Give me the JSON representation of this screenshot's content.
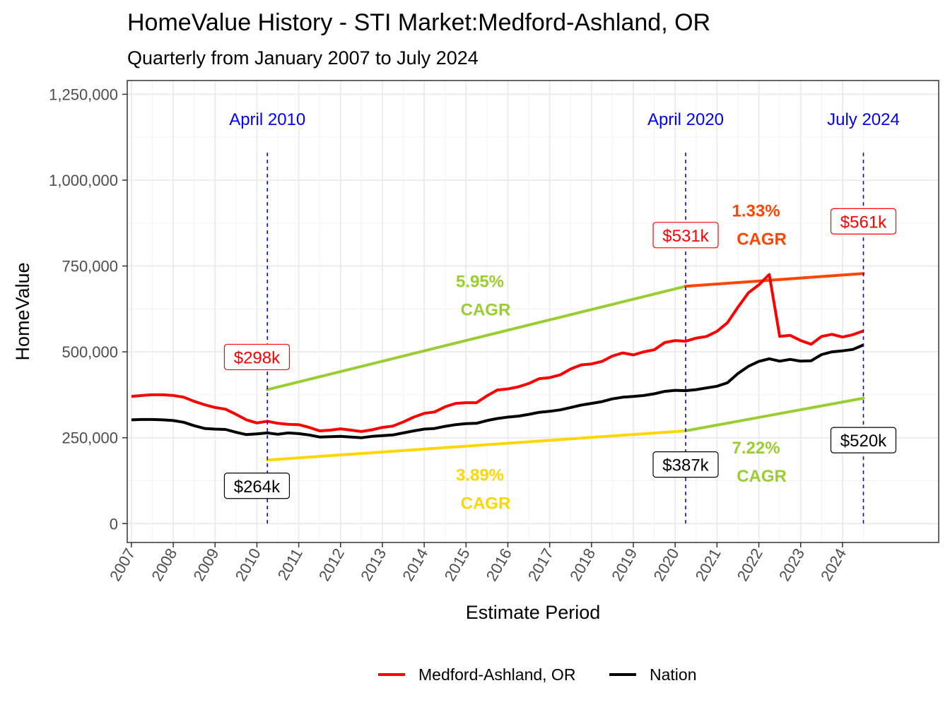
{
  "chart_data": {
    "type": "line",
    "title": "HomeValue History - STI Market:Medford-Ashland, OR",
    "subtitle": "Quarterly from January 2007 to July 2024",
    "xlabel": "Estimate Period",
    "ylabel": "HomeValue",
    "xlim": [
      2006.9,
      2026.3
    ],
    "ylim": [
      -55000,
      1290000
    ],
    "x_ticks": [
      "2007",
      "2008",
      "2009",
      "2010",
      "2011",
      "2012",
      "2013",
      "2014",
      "2015",
      "2016",
      "2017",
      "2018",
      "2019",
      "2020",
      "2021",
      "2022",
      "2023",
      "2024"
    ],
    "y_ticks": [
      {
        "value": 0,
        "label": "0"
      },
      {
        "value": 250000,
        "label": "250,000"
      },
      {
        "value": 500000,
        "label": "500,000"
      },
      {
        "value": 750000,
        "label": "750,000"
      },
      {
        "value": 1000000,
        "label": "1,000,000"
      },
      {
        "value": 1250000,
        "label": "1,250,000"
      }
    ],
    "grid": true,
    "legend_position": "bottom",
    "series": [
      {
        "name": "Medford-Ashland, OR",
        "color": "#ff0000",
        "points": [
          [
            2007.0,
            370000
          ],
          [
            2007.25,
            373000
          ],
          [
            2007.5,
            375000
          ],
          [
            2007.75,
            375000
          ],
          [
            2008.0,
            373000
          ],
          [
            2008.25,
            368000
          ],
          [
            2008.5,
            356000
          ],
          [
            2008.75,
            346000
          ],
          [
            2009.0,
            338000
          ],
          [
            2009.25,
            333000
          ],
          [
            2009.5,
            318000
          ],
          [
            2009.75,
            302000
          ],
          [
            2010.0,
            293000
          ],
          [
            2010.25,
            298000
          ],
          [
            2010.5,
            292000
          ],
          [
            2010.75,
            289000
          ],
          [
            2011.0,
            288000
          ],
          [
            2011.25,
            280000
          ],
          [
            2011.5,
            270000
          ],
          [
            2011.75,
            272000
          ],
          [
            2012.0,
            276000
          ],
          [
            2012.25,
            272000
          ],
          [
            2012.5,
            268000
          ],
          [
            2012.75,
            273000
          ],
          [
            2013.0,
            280000
          ],
          [
            2013.25,
            284000
          ],
          [
            2013.5,
            296000
          ],
          [
            2013.75,
            310000
          ],
          [
            2014.0,
            321000
          ],
          [
            2014.25,
            325000
          ],
          [
            2014.5,
            340000
          ],
          [
            2014.75,
            350000
          ],
          [
            2015.0,
            352000
          ],
          [
            2015.25,
            352000
          ],
          [
            2015.5,
            372000
          ],
          [
            2015.75,
            389000
          ],
          [
            2016.0,
            392000
          ],
          [
            2016.25,
            398000
          ],
          [
            2016.5,
            408000
          ],
          [
            2016.75,
            422000
          ],
          [
            2017.0,
            425000
          ],
          [
            2017.25,
            433000
          ],
          [
            2017.5,
            450000
          ],
          [
            2017.75,
            462000
          ],
          [
            2018.0,
            465000
          ],
          [
            2018.25,
            472000
          ],
          [
            2018.5,
            488000
          ],
          [
            2018.75,
            497000
          ],
          [
            2019.0,
            491000
          ],
          [
            2019.25,
            500000
          ],
          [
            2019.5,
            506000
          ],
          [
            2019.75,
            527000
          ],
          [
            2020.0,
            533000
          ],
          [
            2020.25,
            531000
          ],
          [
            2020.5,
            540000
          ],
          [
            2020.75,
            545000
          ],
          [
            2021.0,
            560000
          ],
          [
            2021.25,
            585000
          ],
          [
            2021.5,
            630000
          ],
          [
            2021.75,
            672000
          ],
          [
            2022.0,
            695000
          ],
          [
            2022.25,
            725000
          ],
          [
            2022.5,
            545000
          ],
          [
            2022.75,
            548000
          ],
          [
            2023.0,
            533000
          ],
          [
            2023.25,
            522000
          ],
          [
            2023.5,
            545000
          ],
          [
            2023.75,
            551000
          ],
          [
            2024.0,
            543000
          ],
          [
            2024.25,
            550000
          ],
          [
            2024.5,
            561000
          ]
        ]
      },
      {
        "name": "Nation",
        "color": "#000000",
        "points": [
          [
            2007.0,
            302000
          ],
          [
            2007.25,
            303000
          ],
          [
            2007.5,
            303000
          ],
          [
            2007.75,
            302000
          ],
          [
            2008.0,
            300000
          ],
          [
            2008.25,
            295000
          ],
          [
            2008.5,
            285000
          ],
          [
            2008.75,
            277000
          ],
          [
            2009.0,
            275000
          ],
          [
            2009.25,
            274000
          ],
          [
            2009.5,
            266000
          ],
          [
            2009.75,
            259000
          ],
          [
            2010.0,
            261000
          ],
          [
            2010.25,
            264000
          ],
          [
            2010.5,
            260000
          ],
          [
            2010.75,
            264000
          ],
          [
            2011.0,
            262000
          ],
          [
            2011.25,
            258000
          ],
          [
            2011.5,
            252000
          ],
          [
            2011.75,
            253000
          ],
          [
            2012.0,
            254000
          ],
          [
            2012.25,
            252000
          ],
          [
            2012.5,
            250000
          ],
          [
            2012.75,
            254000
          ],
          [
            2013.0,
            256000
          ],
          [
            2013.25,
            258000
          ],
          [
            2013.5,
            264000
          ],
          [
            2013.75,
            270000
          ],
          [
            2014.0,
            275000
          ],
          [
            2014.25,
            277000
          ],
          [
            2014.5,
            283000
          ],
          [
            2014.75,
            288000
          ],
          [
            2015.0,
            291000
          ],
          [
            2015.25,
            292000
          ],
          [
            2015.5,
            300000
          ],
          [
            2015.75,
            306000
          ],
          [
            2016.0,
            310000
          ],
          [
            2016.25,
            313000
          ],
          [
            2016.5,
            318000
          ],
          [
            2016.75,
            324000
          ],
          [
            2017.0,
            327000
          ],
          [
            2017.25,
            331000
          ],
          [
            2017.5,
            338000
          ],
          [
            2017.75,
            345000
          ],
          [
            2018.0,
            350000
          ],
          [
            2018.25,
            355000
          ],
          [
            2018.5,
            363000
          ],
          [
            2018.75,
            368000
          ],
          [
            2019.0,
            370000
          ],
          [
            2019.25,
            373000
          ],
          [
            2019.5,
            378000
          ],
          [
            2019.75,
            385000
          ],
          [
            2020.0,
            388000
          ],
          [
            2020.25,
            387000
          ],
          [
            2020.5,
            390000
          ],
          [
            2020.75,
            395000
          ],
          [
            2021.0,
            400000
          ],
          [
            2021.25,
            410000
          ],
          [
            2021.5,
            437000
          ],
          [
            2021.75,
            458000
          ],
          [
            2022.0,
            472000
          ],
          [
            2022.25,
            480000
          ],
          [
            2022.5,
            473000
          ],
          [
            2022.75,
            478000
          ],
          [
            2023.0,
            473000
          ],
          [
            2023.25,
            474000
          ],
          [
            2023.5,
            492000
          ],
          [
            2023.75,
            500000
          ],
          [
            2024.0,
            503000
          ],
          [
            2024.25,
            507000
          ],
          [
            2024.5,
            520000
          ]
        ]
      }
    ],
    "trend_lines": [
      {
        "color": "#9acd32",
        "points": [
          [
            2010.25,
            390000
          ],
          [
            2020.25,
            691000
          ]
        ]
      },
      {
        "color": "#ff4500",
        "points": [
          [
            2020.25,
            691000
          ],
          [
            2024.5,
            728000
          ]
        ]
      },
      {
        "color": "#ffd700",
        "points": [
          [
            2010.25,
            185000
          ],
          [
            2020.25,
            270000
          ]
        ]
      },
      {
        "color": "#9acd32",
        "points": [
          [
            2020.25,
            270000
          ],
          [
            2024.5,
            365000
          ]
        ]
      }
    ],
    "vlines": [
      {
        "x": 2010.25,
        "label": "April 2010",
        "y_top": 1080000,
        "y_bottom": 0
      },
      {
        "x": 2020.25,
        "label": "April 2020",
        "y_top": 1080000,
        "y_bottom": 0
      },
      {
        "x": 2024.5,
        "label": "July 2024",
        "y_top": 1080000,
        "y_bottom": 0
      }
    ],
    "cagr_labels": [
      {
        "line1": "5.95%",
        "line2": "CAGR",
        "x": 2015.4,
        "y": 660000,
        "color": "#9acd32"
      },
      {
        "line1": "1.33%",
        "line2": "CAGR",
        "x": 2022.0,
        "y": 865000,
        "color": "#ff4500"
      },
      {
        "line1": "3.89%",
        "line2": "CAGR",
        "x": 2015.4,
        "y": 96000,
        "color": "#ffd700"
      },
      {
        "line1": "7.22%",
        "line2": "CAGR",
        "x": 2022.0,
        "y": 175000,
        "color": "#9acd32"
      }
    ],
    "value_boxes": [
      {
        "text": "$298k",
        "x": 2010.0,
        "y": 485000,
        "color": "#ff0000"
      },
      {
        "text": "$531k",
        "x": 2020.25,
        "y": 840000,
        "color": "#ff0000"
      },
      {
        "text": "$561k",
        "x": 2024.5,
        "y": 880000,
        "color": "#ff0000"
      },
      {
        "text": "$264k",
        "x": 2010.0,
        "y": 110000,
        "color": "#000000"
      },
      {
        "text": "$387k",
        "x": 2020.25,
        "y": 172000,
        "color": "#000000"
      },
      {
        "text": "$520k",
        "x": 2024.5,
        "y": 243000,
        "color": "#000000"
      }
    ]
  }
}
